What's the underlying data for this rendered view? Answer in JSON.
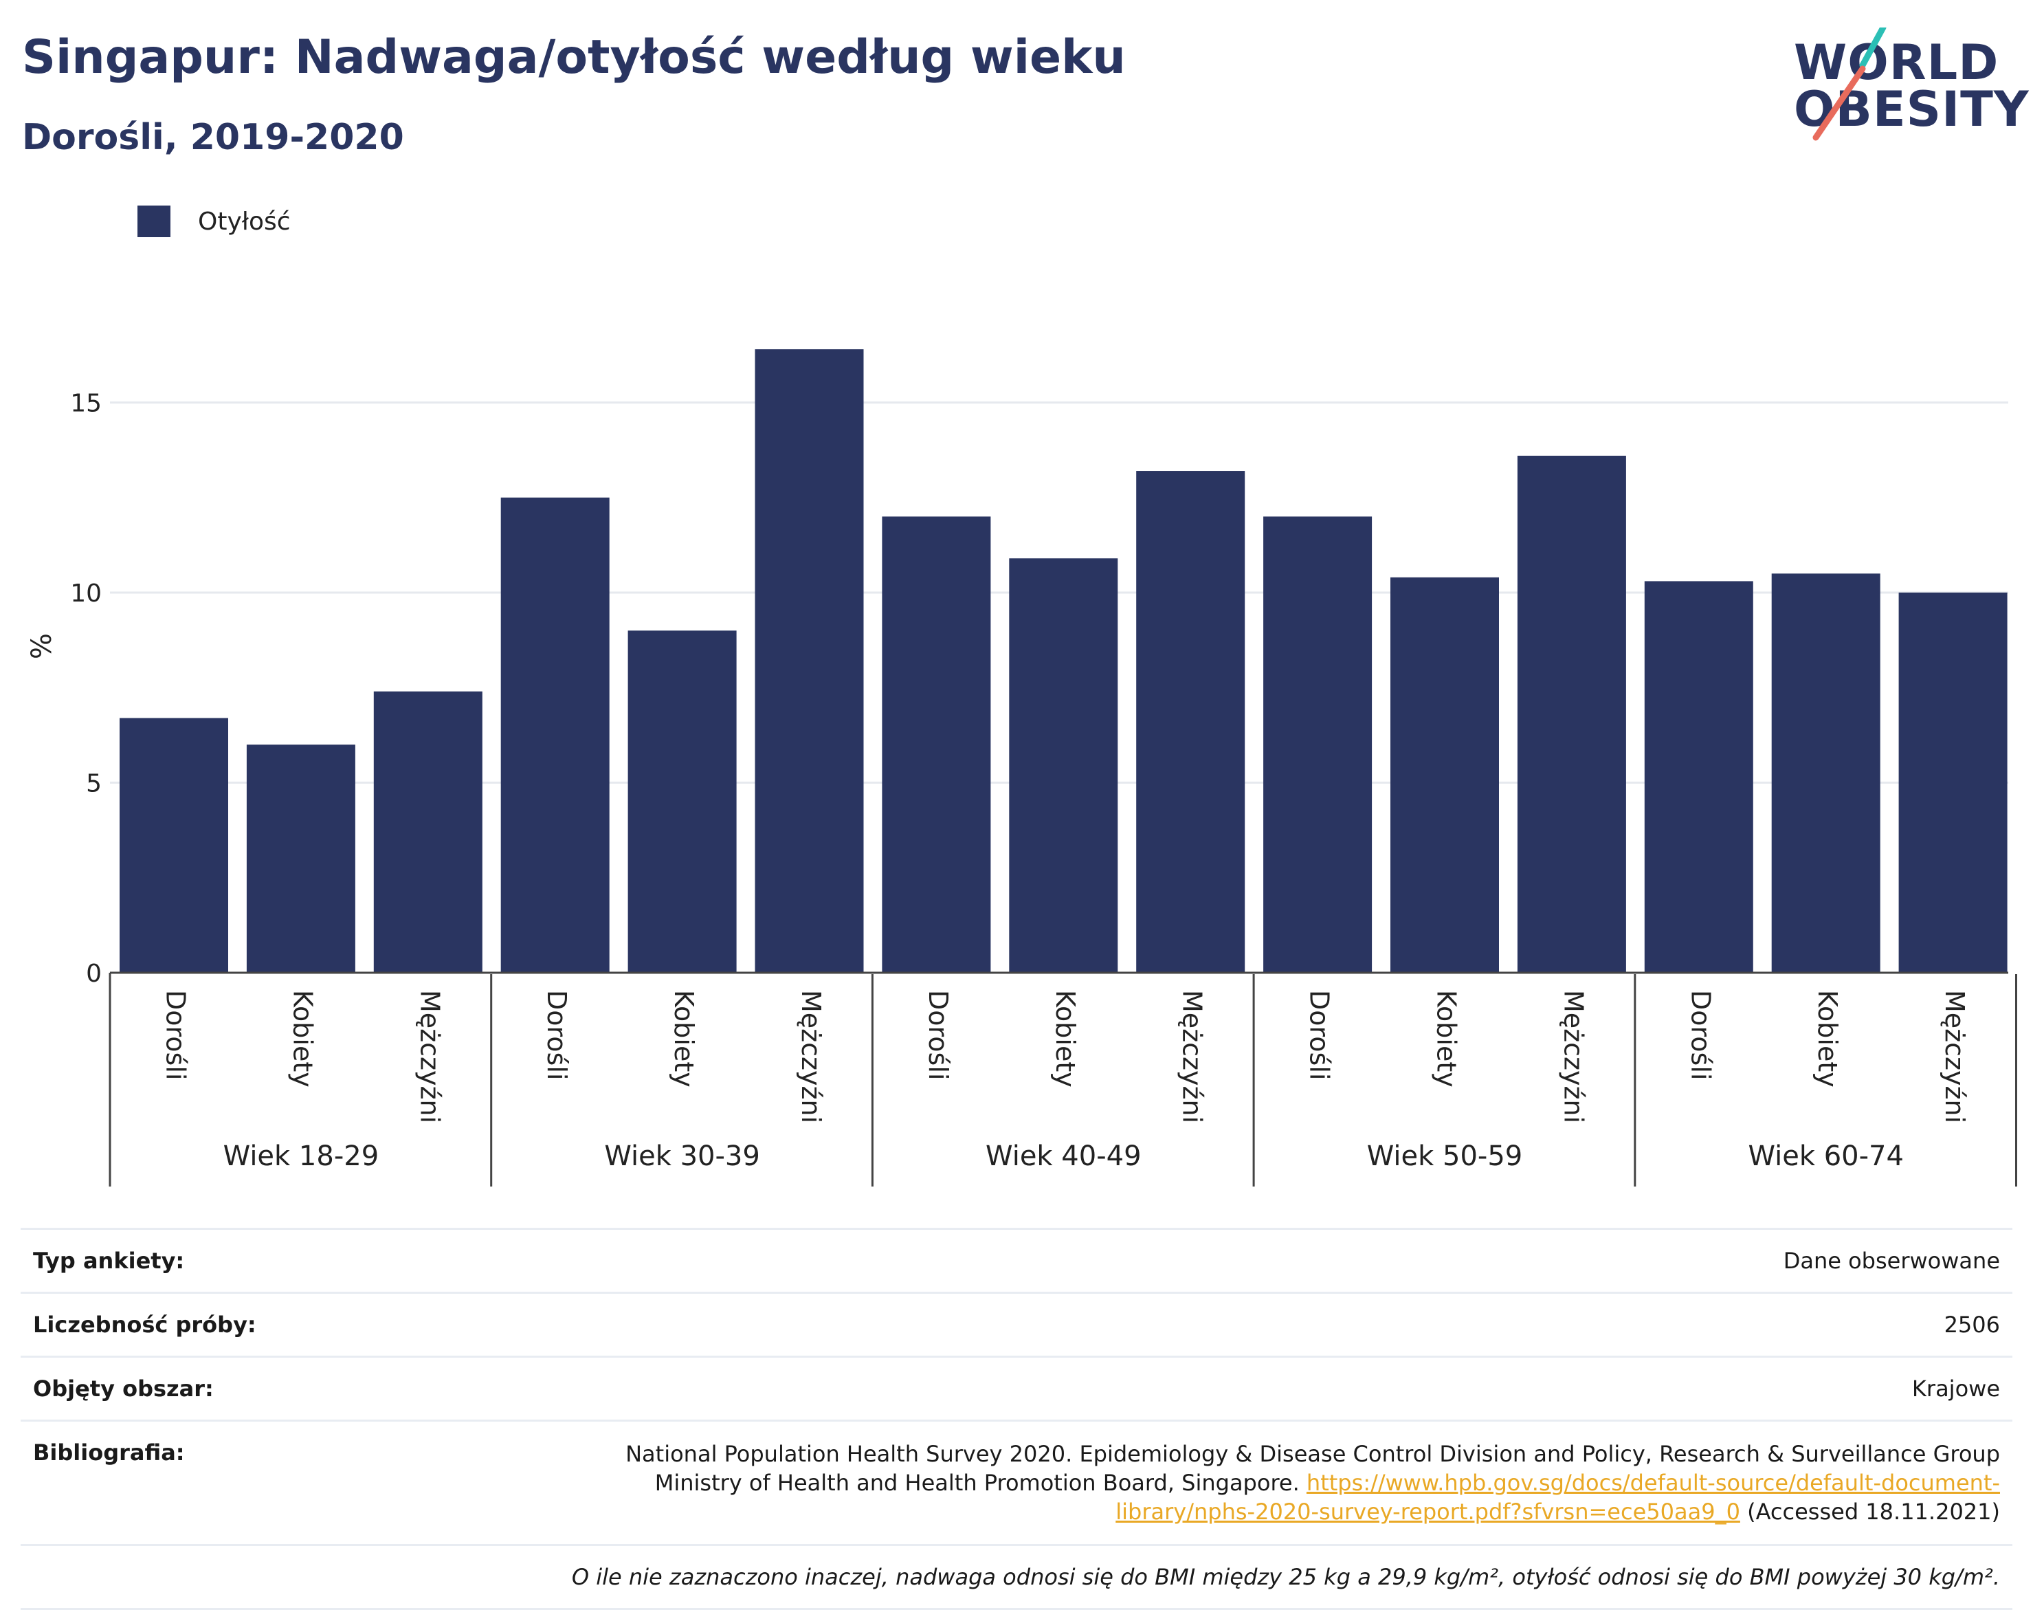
{
  "header": {
    "title": "Singapur: Nadwaga/otyłość według wieku",
    "subtitle": "Dorośli, 2019-2020"
  },
  "logo": {
    "line1": "WORLD",
    "line2": "OBESITY",
    "accent_colors": [
      "#2bbfb5",
      "#e86b5c"
    ]
  },
  "legend": {
    "items": [
      {
        "label": "Otyłość",
        "color": "#2a3561"
      }
    ]
  },
  "chart_data": {
    "type": "bar",
    "title": "Singapur: Nadwaga/otyłość według wieku",
    "subtitle": "Dorośli, 2019-2020",
    "ylabel": "%",
    "ylim": [
      0,
      17.5
    ],
    "yticks": [
      0,
      5,
      10,
      15
    ],
    "grid": true,
    "legend_position": "top-left",
    "bar_color": "#2a3561",
    "groups": [
      {
        "label": "Wiek 18-29",
        "categories": [
          "Dorośli",
          "Kobiety",
          "Mężczyźni"
        ],
        "values": [
          6.7,
          6.0,
          7.4
        ]
      },
      {
        "label": "Wiek 30-39",
        "categories": [
          "Dorośli",
          "Kobiety",
          "Mężczyźni"
        ],
        "values": [
          12.5,
          9.0,
          16.4
        ]
      },
      {
        "label": "Wiek 40-49",
        "categories": [
          "Dorośli",
          "Kobiety",
          "Mężczyźni"
        ],
        "values": [
          12.0,
          10.9,
          13.2
        ]
      },
      {
        "label": "Wiek 50-59",
        "categories": [
          "Dorośli",
          "Kobiety",
          "Mężczyźni"
        ],
        "values": [
          12.0,
          10.4,
          13.6
        ]
      },
      {
        "label": "Wiek 60-74",
        "categories": [
          "Dorośli",
          "Kobiety",
          "Mężczyźni"
        ],
        "values": [
          10.3,
          10.5,
          10.0
        ]
      }
    ],
    "series": [
      {
        "name": "Otyłość"
      }
    ]
  },
  "info": {
    "survey_type_label": "Typ ankiety:",
    "survey_type_value": "Dane obserwowane",
    "sample_size_label": "Liczebność próby:",
    "sample_size_value": "2506",
    "coverage_label": "Objęty obszar:",
    "coverage_value": "Krajowe",
    "bibliography_label": "Bibliografia:",
    "bibliography_text": "National Population Health Survey 2020. Epidemiology & Disease Control Division and Policy, Research & Surveillance Group Ministry of Health and Health Promotion Board, Singapore.",
    "bibliography_link": "https://www.hpb.gov.sg/docs/default-source/default-document-library/nphs-2020-survey-report.pdf?sfvrsn=ece50aa9_0",
    "bibliography_accessed": "(Accessed 18.11.2021)",
    "note": "O ile nie zaznaczono inaczej, nadwaga odnosi się do BMI między 25 kg a 29,9 kg/m², otyłość odnosi się do BMI powyżej 30 kg/m²."
  }
}
